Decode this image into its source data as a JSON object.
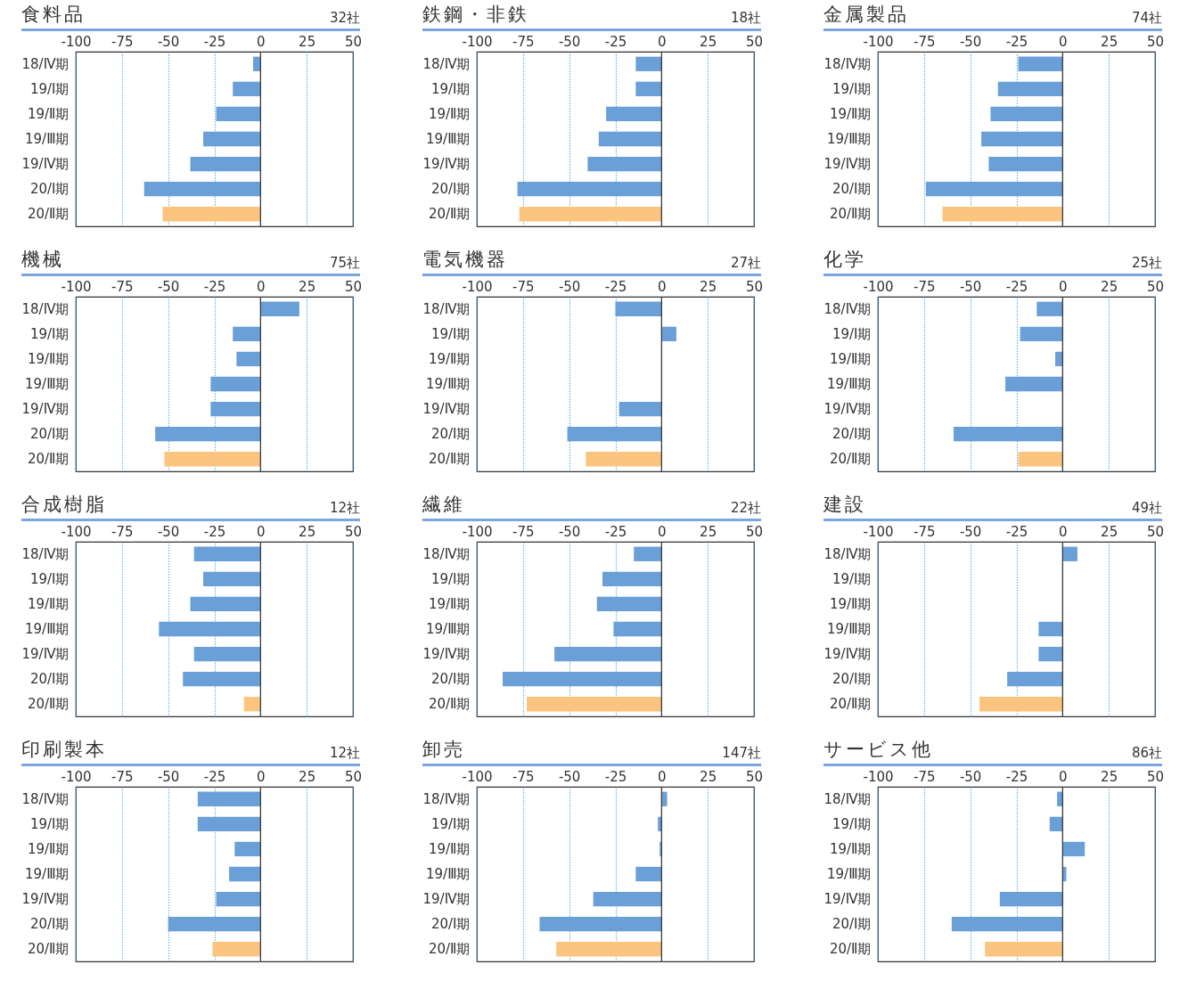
{
  "chart_data": [
    {
      "type": "bar",
      "orientation": "horizontal",
      "title": "食料品",
      "subtitle": "32社",
      "categories": [
        "18/Ⅳ期",
        "19/Ⅰ期",
        "19/Ⅱ期",
        "19/Ⅲ期",
        "19/Ⅳ期",
        "20/Ⅰ期",
        "20/Ⅱ期"
      ],
      "values": [
        -4,
        -15,
        -24,
        -31,
        -38,
        -63,
        -53
      ],
      "colors": [
        "#6a9fd8",
        "#6a9fd8",
        "#6a9fd8",
        "#6a9fd8",
        "#6a9fd8",
        "#6a9fd8",
        "#fbc57f"
      ],
      "xlim": [
        -100,
        50
      ],
      "xticks": [
        -100,
        -75,
        -50,
        -25,
        0,
        25,
        50
      ],
      "grid": "x",
      "ref_lines": [
        {
          "axis": "x",
          "value": 0,
          "color": "#333333"
        }
      ]
    },
    {
      "type": "bar",
      "orientation": "horizontal",
      "title": "鉄鋼・非鉄",
      "subtitle": "18社",
      "categories": [
        "18/Ⅳ期",
        "19/Ⅰ期",
        "19/Ⅱ期",
        "19/Ⅲ期",
        "19/Ⅳ期",
        "20/Ⅰ期",
        "20/Ⅱ期"
      ],
      "values": [
        -14,
        -14,
        -30,
        -34,
        -40,
        -78,
        -77
      ],
      "colors": [
        "#6a9fd8",
        "#6a9fd8",
        "#6a9fd8",
        "#6a9fd8",
        "#6a9fd8",
        "#6a9fd8",
        "#fbc57f"
      ],
      "xlim": [
        -100,
        50
      ],
      "xticks": [
        -100,
        -75,
        -50,
        -25,
        0,
        25,
        50
      ],
      "grid": "x",
      "ref_lines": [
        {
          "axis": "x",
          "value": 0,
          "color": "#333333"
        }
      ]
    },
    {
      "type": "bar",
      "orientation": "horizontal",
      "title": "金属製品",
      "subtitle": "74社",
      "categories": [
        "18/Ⅳ期",
        "19/Ⅰ期",
        "19/Ⅱ期",
        "19/Ⅲ期",
        "19/Ⅳ期",
        "20/Ⅰ期",
        "20/Ⅱ期"
      ],
      "values": [
        -24,
        -35,
        -39,
        -44,
        -40,
        -74,
        -65
      ],
      "colors": [
        "#6a9fd8",
        "#6a9fd8",
        "#6a9fd8",
        "#6a9fd8",
        "#6a9fd8",
        "#6a9fd8",
        "#fbc57f"
      ],
      "xlim": [
        -100,
        50
      ],
      "xticks": [
        -100,
        -75,
        -50,
        -25,
        0,
        25,
        50
      ],
      "grid": "x",
      "ref_lines": [
        {
          "axis": "x",
          "value": 0,
          "color": "#333333"
        }
      ]
    },
    {
      "type": "bar",
      "orientation": "horizontal",
      "title": "機械",
      "subtitle": "75社",
      "categories": [
        "18/Ⅳ期",
        "19/Ⅰ期",
        "19/Ⅱ期",
        "19/Ⅲ期",
        "19/Ⅳ期",
        "20/Ⅰ期",
        "20/Ⅱ期"
      ],
      "values": [
        21,
        -15,
        -13,
        -27,
        -27,
        -57,
        -52
      ],
      "colors": [
        "#6a9fd8",
        "#6a9fd8",
        "#6a9fd8",
        "#6a9fd8",
        "#6a9fd8",
        "#6a9fd8",
        "#fbc57f"
      ],
      "xlim": [
        -100,
        50
      ],
      "xticks": [
        -100,
        -75,
        -50,
        -25,
        0,
        25,
        50
      ],
      "grid": "x",
      "ref_lines": [
        {
          "axis": "x",
          "value": 0,
          "color": "#333333"
        }
      ]
    },
    {
      "type": "bar",
      "orientation": "horizontal",
      "title": "電気機器",
      "subtitle": "27社",
      "categories": [
        "18/Ⅳ期",
        "19/Ⅰ期",
        "19/Ⅱ期",
        "19/Ⅲ期",
        "19/Ⅳ期",
        "20/Ⅰ期",
        "20/Ⅱ期"
      ],
      "values": [
        -25,
        8,
        0,
        0,
        -23,
        -51,
        -41
      ],
      "colors": [
        "#6a9fd8",
        "#6a9fd8",
        "#6a9fd8",
        "#6a9fd8",
        "#6a9fd8",
        "#6a9fd8",
        "#fbc57f"
      ],
      "xlim": [
        -100,
        50
      ],
      "xticks": [
        -100,
        -75,
        -50,
        -25,
        0,
        25,
        50
      ],
      "grid": "x",
      "ref_lines": [
        {
          "axis": "x",
          "value": 0,
          "color": "#333333"
        }
      ]
    },
    {
      "type": "bar",
      "orientation": "horizontal",
      "title": "化学",
      "subtitle": "25社",
      "categories": [
        "18/Ⅳ期",
        "19/Ⅰ期",
        "19/Ⅱ期",
        "19/Ⅲ期",
        "19/Ⅳ期",
        "20/Ⅰ期",
        "20/Ⅱ期"
      ],
      "values": [
        -14,
        -23,
        -4,
        -31,
        0,
        -59,
        -24
      ],
      "colors": [
        "#6a9fd8",
        "#6a9fd8",
        "#6a9fd8",
        "#6a9fd8",
        "#6a9fd8",
        "#6a9fd8",
        "#fbc57f"
      ],
      "xlim": [
        -100,
        50
      ],
      "xticks": [
        -100,
        -75,
        -50,
        -25,
        0,
        25,
        50
      ],
      "grid": "x",
      "ref_lines": [
        {
          "axis": "x",
          "value": 0,
          "color": "#333333"
        }
      ]
    },
    {
      "type": "bar",
      "orientation": "horizontal",
      "title": "合成樹脂",
      "subtitle": "12社",
      "categories": [
        "18/Ⅳ期",
        "19/Ⅰ期",
        "19/Ⅱ期",
        "19/Ⅲ期",
        "19/Ⅳ期",
        "20/Ⅰ期",
        "20/Ⅱ期"
      ],
      "values": [
        -36,
        -31,
        -38,
        -55,
        -36,
        -42,
        -9
      ],
      "colors": [
        "#6a9fd8",
        "#6a9fd8",
        "#6a9fd8",
        "#6a9fd8",
        "#6a9fd8",
        "#6a9fd8",
        "#fbc57f"
      ],
      "xlim": [
        -100,
        50
      ],
      "xticks": [
        -100,
        -75,
        -50,
        -25,
        0,
        25,
        50
      ],
      "grid": "x",
      "ref_lines": [
        {
          "axis": "x",
          "value": 0,
          "color": "#333333"
        }
      ]
    },
    {
      "type": "bar",
      "orientation": "horizontal",
      "title": "繊維",
      "subtitle": "22社",
      "categories": [
        "18/Ⅳ期",
        "19/Ⅰ期",
        "19/Ⅱ期",
        "19/Ⅲ期",
        "19/Ⅳ期",
        "20/Ⅰ期",
        "20/Ⅱ期"
      ],
      "values": [
        -15,
        -32,
        -35,
        -26,
        -58,
        -86,
        -73
      ],
      "colors": [
        "#6a9fd8",
        "#6a9fd8",
        "#6a9fd8",
        "#6a9fd8",
        "#6a9fd8",
        "#6a9fd8",
        "#fbc57f"
      ],
      "xlim": [
        -100,
        50
      ],
      "xticks": [
        -100,
        -75,
        -50,
        -25,
        0,
        25,
        50
      ],
      "grid": "x",
      "ref_lines": [
        {
          "axis": "x",
          "value": 0,
          "color": "#333333"
        }
      ]
    },
    {
      "type": "bar",
      "orientation": "horizontal",
      "title": "建設",
      "subtitle": "49社",
      "categories": [
        "18/Ⅳ期",
        "19/Ⅰ期",
        "19/Ⅱ期",
        "19/Ⅲ期",
        "19/Ⅳ期",
        "20/Ⅰ期",
        "20/Ⅱ期"
      ],
      "values": [
        8,
        0,
        0,
        -13,
        -13,
        -30,
        -45
      ],
      "colors": [
        "#6a9fd8",
        "#6a9fd8",
        "#6a9fd8",
        "#6a9fd8",
        "#6a9fd8",
        "#6a9fd8",
        "#fbc57f"
      ],
      "xlim": [
        -100,
        50
      ],
      "xticks": [
        -100,
        -75,
        -50,
        -25,
        0,
        25,
        50
      ],
      "grid": "x",
      "ref_lines": [
        {
          "axis": "x",
          "value": 0,
          "color": "#333333"
        }
      ]
    },
    {
      "type": "bar",
      "orientation": "horizontal",
      "title": "印刷製本",
      "subtitle": "12社",
      "categories": [
        "18/Ⅳ期",
        "19/Ⅰ期",
        "19/Ⅱ期",
        "19/Ⅲ期",
        "19/Ⅳ期",
        "20/Ⅰ期",
        "20/Ⅱ期"
      ],
      "values": [
        -34,
        -34,
        -14,
        -17,
        -24,
        -50,
        -26
      ],
      "colors": [
        "#6a9fd8",
        "#6a9fd8",
        "#6a9fd8",
        "#6a9fd8",
        "#6a9fd8",
        "#6a9fd8",
        "#fbc57f"
      ],
      "xlim": [
        -100,
        50
      ],
      "xticks": [
        -100,
        -75,
        -50,
        -25,
        0,
        25,
        50
      ],
      "grid": "x",
      "ref_lines": [
        {
          "axis": "x",
          "value": 0,
          "color": "#333333"
        }
      ]
    },
    {
      "type": "bar",
      "orientation": "horizontal",
      "title": "卸売",
      "subtitle": "147社",
      "categories": [
        "18/Ⅳ期",
        "19/Ⅰ期",
        "19/Ⅱ期",
        "19/Ⅲ期",
        "19/Ⅳ期",
        "20/Ⅰ期",
        "20/Ⅱ期"
      ],
      "values": [
        3,
        -2,
        -1,
        -14,
        -37,
        -66,
        -57
      ],
      "colors": [
        "#6a9fd8",
        "#6a9fd8",
        "#6a9fd8",
        "#6a9fd8",
        "#6a9fd8",
        "#6a9fd8",
        "#fbc57f"
      ],
      "xlim": [
        -100,
        50
      ],
      "xticks": [
        -100,
        -75,
        -50,
        -25,
        0,
        25,
        50
      ],
      "grid": "x",
      "ref_lines": [
        {
          "axis": "x",
          "value": 0,
          "color": "#333333"
        }
      ]
    },
    {
      "type": "bar",
      "orientation": "horizontal",
      "title": "サービス他",
      "subtitle": "86社",
      "categories": [
        "18/Ⅳ期",
        "19/Ⅰ期",
        "19/Ⅱ期",
        "19/Ⅲ期",
        "19/Ⅳ期",
        "20/Ⅰ期",
        "20/Ⅱ期"
      ],
      "values": [
        -3,
        -7,
        12,
        2,
        -34,
        -60,
        -42
      ],
      "colors": [
        "#6a9fd8",
        "#6a9fd8",
        "#6a9fd8",
        "#6a9fd8",
        "#6a9fd8",
        "#6a9fd8",
        "#fbc57f"
      ],
      "xlim": [
        -100,
        50
      ],
      "xticks": [
        -100,
        -75,
        -50,
        -25,
        0,
        25,
        50
      ],
      "grid": "x",
      "ref_lines": [
        {
          "axis": "x",
          "value": 0,
          "color": "#333333"
        }
      ]
    }
  ]
}
